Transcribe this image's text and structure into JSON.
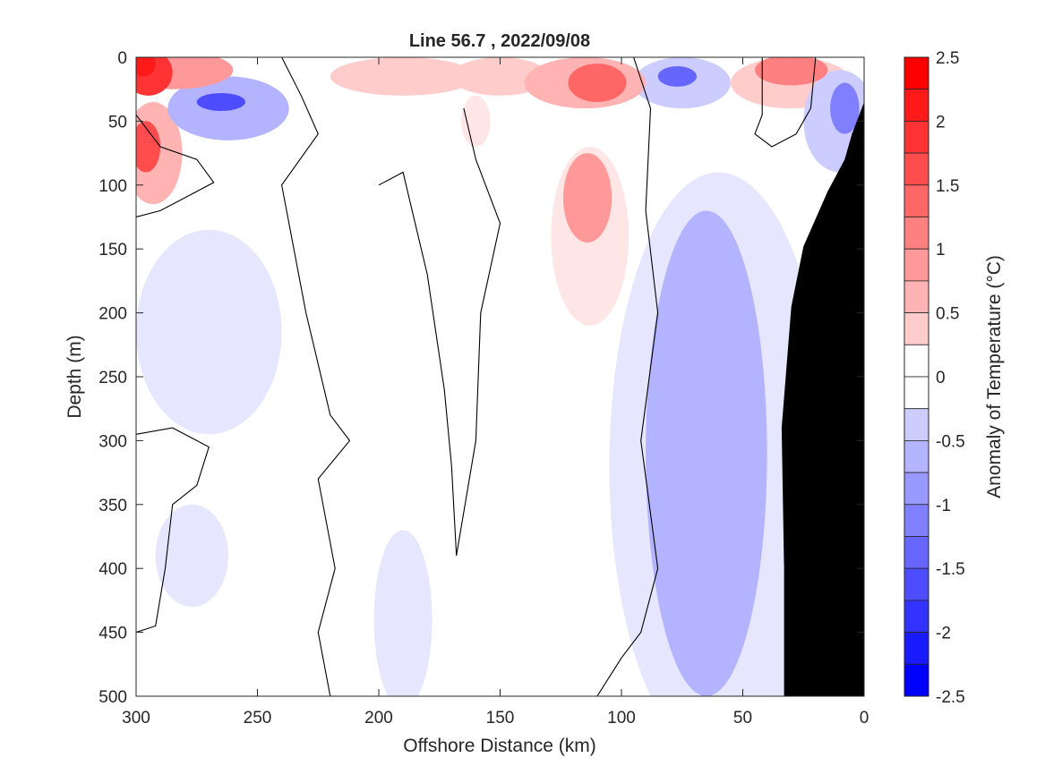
{
  "chart_data": {
    "type": "heatmap",
    "title": "Line 56.7 , 2022/09/08",
    "xlabel": "Offshore Distance (km)",
    "ylabel": "Depth (m)",
    "xlim": [
      300,
      0
    ],
    "ylim": [
      0,
      500
    ],
    "x_reversed": true,
    "y_reversed": true,
    "x_ticks": [
      300,
      250,
      200,
      150,
      100,
      50,
      0
    ],
    "x_tick_labels": [
      "300",
      "250",
      "200",
      "150",
      "100",
      "50",
      "0"
    ],
    "y_ticks": [
      0,
      50,
      100,
      150,
      200,
      250,
      300,
      350,
      400,
      450,
      500
    ],
    "y_tick_labels": [
      "0",
      "50",
      "100",
      "150",
      "200",
      "250",
      "300",
      "350",
      "400",
      "450",
      "500"
    ],
    "colorbar": {
      "label": "Anomaly of Temperature (°C)",
      "min": -2.5,
      "max": 2.5,
      "step": 0.25,
      "tick_values": [
        2.5,
        2,
        1.5,
        1,
        0.5,
        0,
        -0.5,
        -1,
        -1.5,
        -2,
        -2.5
      ],
      "tick_labels": [
        "2.5",
        "2",
        "1.5",
        "1",
        "0.5",
        "0",
        "-0.5",
        "-1",
        "-1.5",
        "-2",
        "-2.5"
      ],
      "positive_color": "#ff0000",
      "negative_color": "#0000ff",
      "neutral_color": "#ffffff"
    },
    "features": [
      {
        "kind": "warm",
        "level": 2.25,
        "center": [
          297,
          5
        ],
        "radius": [
          5,
          10
        ]
      },
      {
        "kind": "warm",
        "level": 2.0,
        "center": [
          295,
          12
        ],
        "radius": [
          10,
          18
        ]
      },
      {
        "kind": "warm",
        "level": 1.0,
        "center": [
          285,
          10
        ],
        "radius": [
          25,
          15
        ]
      },
      {
        "kind": "warm",
        "level": 1.75,
        "center": [
          296,
          70
        ],
        "radius": [
          6,
          20
        ]
      },
      {
        "kind": "warm",
        "level": 0.75,
        "center": [
          293,
          75
        ],
        "radius": [
          12,
          40
        ]
      },
      {
        "kind": "cold",
        "level": -1.75,
        "center": [
          265,
          35
        ],
        "radius": [
          10,
          7
        ]
      },
      {
        "kind": "cold",
        "level": -0.75,
        "center": [
          262,
          40
        ],
        "radius": [
          25,
          25
        ]
      },
      {
        "kind": "warm",
        "level": 0.5,
        "center": [
          190,
          15
        ],
        "radius": [
          30,
          15
        ]
      },
      {
        "kind": "warm",
        "level": 0.5,
        "center": [
          150,
          15
        ],
        "radius": [
          20,
          15
        ]
      },
      {
        "kind": "warm",
        "level": 0.25,
        "center": [
          160,
          50
        ],
        "radius": [
          6,
          20
        ]
      },
      {
        "kind": "warm",
        "level": 1.5,
        "center": [
          110,
          20
        ],
        "radius": [
          12,
          15
        ]
      },
      {
        "kind": "warm",
        "level": 0.75,
        "center": [
          115,
          20
        ],
        "radius": [
          25,
          20
        ]
      },
      {
        "kind": "warm",
        "level": 1.0,
        "center": [
          114,
          110
        ],
        "radius": [
          10,
          35
        ]
      },
      {
        "kind": "warm",
        "level": 0.25,
        "center": [
          113,
          140
        ],
        "radius": [
          16,
          70
        ]
      },
      {
        "kind": "cold",
        "level": -1.5,
        "center": [
          77,
          15
        ],
        "radius": [
          8,
          8
        ]
      },
      {
        "kind": "cold",
        "level": -0.5,
        "center": [
          75,
          20
        ],
        "radius": [
          20,
          20
        ]
      },
      {
        "kind": "warm",
        "level": 1.25,
        "center": [
          30,
          10
        ],
        "radius": [
          15,
          12
        ]
      },
      {
        "kind": "warm",
        "level": 0.5,
        "center": [
          30,
          20
        ],
        "radius": [
          25,
          20
        ]
      },
      {
        "kind": "cold",
        "level": -1.25,
        "center": [
          8,
          40
        ],
        "radius": [
          6,
          20
        ]
      },
      {
        "kind": "cold",
        "level": -0.5,
        "center": [
          10,
          50
        ],
        "radius": [
          15,
          40
        ]
      },
      {
        "kind": "cold",
        "level": -0.25,
        "center": [
          270,
          215
        ],
        "radius": [
          30,
          80
        ]
      },
      {
        "kind": "cold",
        "level": -0.25,
        "center": [
          277,
          390
        ],
        "radius": [
          15,
          40
        ]
      },
      {
        "kind": "cold",
        "level": -0.25,
        "center": [
          190,
          440
        ],
        "radius": [
          12,
          70
        ]
      },
      {
        "kind": "cold",
        "level": -0.75,
        "center": [
          65,
          310
        ],
        "radius": [
          25,
          190
        ]
      },
      {
        "kind": "cold",
        "level": -0.25,
        "center": [
          60,
          320
        ],
        "radius": [
          45,
          230
        ]
      }
    ],
    "zero_contours": [
      [
        [
          300,
          125
        ],
        [
          290,
          120
        ],
        [
          280,
          110
        ],
        [
          268,
          98
        ],
        [
          275,
          80
        ],
        [
          290,
          70
        ],
        [
          298,
          50
        ],
        [
          300,
          45
        ]
      ],
      [
        [
          300,
          295
        ],
        [
          285,
          290
        ],
        [
          270,
          305
        ],
        [
          275,
          335
        ],
        [
          285,
          350
        ],
        [
          288,
          400
        ],
        [
          292,
          445
        ],
        [
          300,
          450
        ]
      ],
      [
        [
          240,
          0
        ],
        [
          232,
          30
        ],
        [
          225,
          60
        ],
        [
          240,
          100
        ],
        [
          230,
          200
        ],
        [
          220,
          280
        ],
        [
          212,
          300
        ],
        [
          225,
          330
        ],
        [
          218,
          400
        ],
        [
          225,
          450
        ],
        [
          220,
          500
        ]
      ],
      [
        [
          200,
          100
        ],
        [
          190,
          90
        ],
        [
          180,
          170
        ],
        [
          173,
          260
        ],
        [
          170,
          320
        ],
        [
          168,
          390
        ],
        [
          160,
          300
        ],
        [
          158,
          200
        ],
        [
          150,
          130
        ],
        [
          160,
          80
        ],
        [
          165,
          40
        ]
      ],
      [
        [
          95,
          0
        ],
        [
          88,
          40
        ],
        [
          90,
          120
        ],
        [
          85,
          200
        ],
        [
          92,
          300
        ],
        [
          85,
          400
        ],
        [
          92,
          450
        ],
        [
          100,
          470
        ],
        [
          110,
          500
        ]
      ],
      [
        [
          42,
          0
        ],
        [
          42,
          45
        ],
        [
          45,
          60
        ],
        [
          38,
          70
        ],
        [
          28,
          60
        ],
        [
          22,
          40
        ],
        [
          20,
          0
        ]
      ],
      [
        [
          30,
          210
        ],
        [
          27,
          215
        ],
        [
          25,
          230
        ],
        [
          26,
          250
        ]
      ]
    ],
    "land_profile": [
      [
        0,
        35
      ],
      [
        5,
        60
      ],
      [
        8,
        80
      ],
      [
        15,
        105
      ],
      [
        25,
        148
      ],
      [
        30,
        195
      ],
      [
        34,
        290
      ],
      [
        33,
        400
      ],
      [
        33,
        500
      ]
    ],
    "land_color": "#000000"
  }
}
